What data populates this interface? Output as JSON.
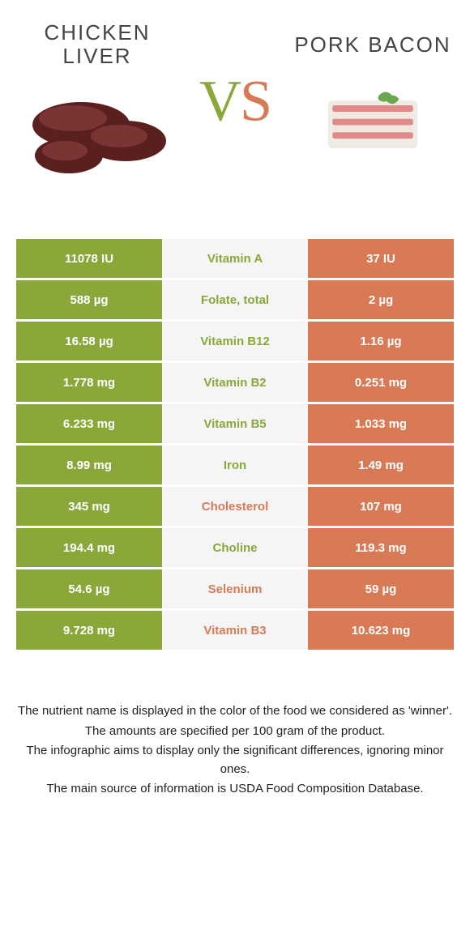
{
  "food_a": {
    "title": "CHICKEN LIVER"
  },
  "food_b": {
    "title": "PORK BACON"
  },
  "vs": {
    "v": "V",
    "s": "S"
  },
  "colors": {
    "green": "#8aa83a",
    "orange": "#d97a56",
    "mid_bg": "#f5f5f5",
    "white_text": "#ffffff",
    "green_text": "#8aa83a",
    "orange_text": "#d97a56"
  },
  "rows": [
    {
      "nutrient": "Vitamin A",
      "a": "11078 IU",
      "b": "37 IU",
      "winner": "a"
    },
    {
      "nutrient": "Folate, total",
      "a": "588 µg",
      "b": "2 µg",
      "winner": "a"
    },
    {
      "nutrient": "Vitamin B12",
      "a": "16.58 µg",
      "b": "1.16 µg",
      "winner": "a"
    },
    {
      "nutrient": "Vitamin B2",
      "a": "1.778 mg",
      "b": "0.251 mg",
      "winner": "a"
    },
    {
      "nutrient": "Vitamin B5",
      "a": "6.233 mg",
      "b": "1.033 mg",
      "winner": "a"
    },
    {
      "nutrient": "Iron",
      "a": "8.99 mg",
      "b": "1.49 mg",
      "winner": "a"
    },
    {
      "nutrient": "Cholesterol",
      "a": "345 mg",
      "b": "107 mg",
      "winner": "b"
    },
    {
      "nutrient": "Choline",
      "a": "194.4 mg",
      "b": "119.3 mg",
      "winner": "a"
    },
    {
      "nutrient": "Selenium",
      "a": "54.6 µg",
      "b": "59 µg",
      "winner": "b"
    },
    {
      "nutrient": "Vitamin B3",
      "a": "9.728 mg",
      "b": "10.623 mg",
      "winner": "b"
    }
  ],
  "footer": [
    "The nutrient name is displayed in the color of the food we considered as 'winner'.",
    "The amounts are specified per 100 gram of the product.",
    "The infographic aims to display only the significant differences, ignoring minor ones.",
    "The main source of information is USDA Food Composition Database."
  ]
}
